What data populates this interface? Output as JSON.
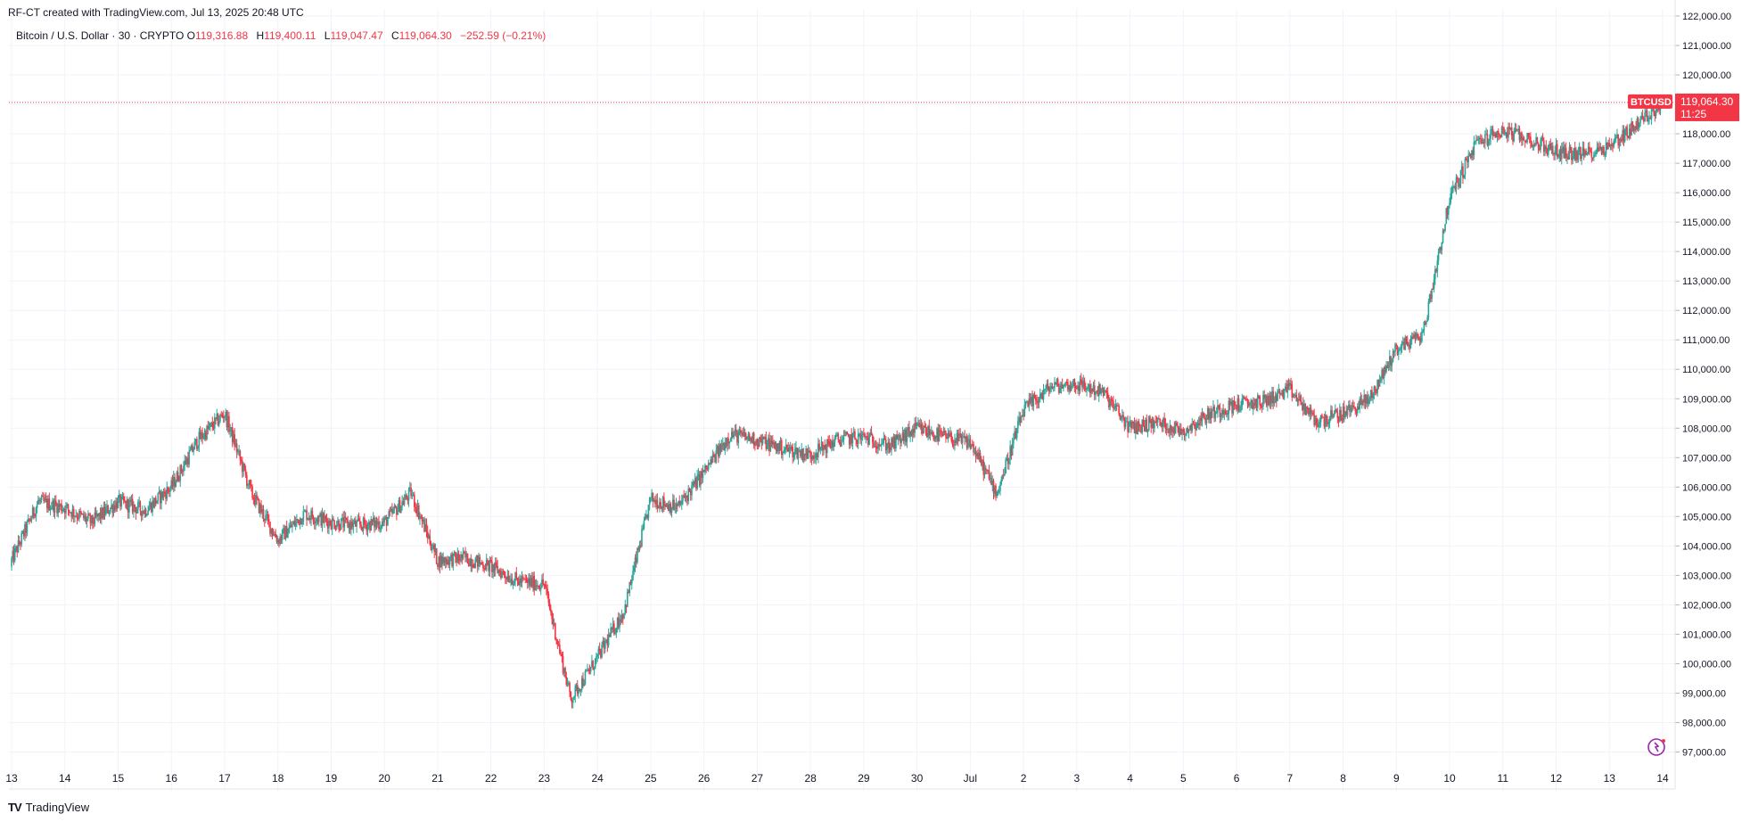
{
  "header": {
    "created_text": "RF-CT created with TradingView.com, Jul 13, 2025 20:48 UTC"
  },
  "legend": {
    "symbol": "Bitcoin / U.S. Dollar · 30 · CRYPTO",
    "open_label": "O",
    "open": "119,316.88",
    "high_label": "H",
    "high": "119,400.11",
    "low_label": "L",
    "low": "119,047.47",
    "close_label": "C",
    "close": "119,064.30",
    "change": "−252.59 (−0.21%)"
  },
  "price_tag": {
    "symbol": "BTCUSD",
    "price": "119,064.30",
    "countdown": "11:25"
  },
  "footer": {
    "brand": "TradingView"
  },
  "colors": {
    "up": "#26a69a",
    "down": "#f23645",
    "grid": "#f0f3fa",
    "axis_text": "#131722"
  },
  "chart_data": {
    "type": "line",
    "title": "Bitcoin / U.S. Dollar · 30 · CRYPTO",
    "ylim": [
      96500,
      122000
    ],
    "y_ticks": [
      97000,
      98000,
      99000,
      100000,
      101000,
      102000,
      103000,
      104000,
      105000,
      106000,
      107000,
      108000,
      109000,
      110000,
      111000,
      112000,
      113000,
      114000,
      115000,
      116000,
      117000,
      118000,
      119000,
      120000,
      121000,
      122000
    ],
    "y_tick_labels": [
      "97,000.00",
      "98,000.00",
      "99,000.00",
      "100,000.00",
      "101,000.00",
      "102,000.00",
      "103,000.00",
      "104,000.00",
      "105,000.00",
      "106,000.00",
      "107,000.00",
      "108,000.00",
      "109,000.00",
      "110,000.00",
      "111,000.00",
      "112,000.00",
      "113,000.00",
      "114,000.00",
      "115,000.00",
      "116,000.00",
      "117,000.00",
      "118,000.00",
      "119,000.00",
      "120,000.00",
      "121,000.00",
      "122,000.00"
    ],
    "x_tick_labels": [
      "13",
      "14",
      "15",
      "16",
      "17",
      "18",
      "19",
      "20",
      "21",
      "22",
      "23",
      "24",
      "25",
      "26",
      "27",
      "28",
      "29",
      "30",
      "Jul",
      "2",
      "3",
      "4",
      "5",
      "6",
      "7",
      "8",
      "9",
      "10",
      "11",
      "12",
      "13",
      "14"
    ],
    "last_price": 119064.3,
    "series": [
      {
        "name": "BTCUSD",
        "x": [
          0,
          0.5,
          1,
          1.5,
          2,
          2.5,
          3,
          3.5,
          4,
          4.5,
          5,
          5.5,
          6,
          6.5,
          7,
          7.5,
          8,
          8.5,
          9,
          9.5,
          10,
          10.5,
          11,
          11.5,
          12,
          12.5,
          13,
          13.5,
          14,
          14.5,
          15,
          15.5,
          16,
          16.5,
          17,
          17.5,
          18,
          18.5,
          19,
          19.5,
          20,
          20.5,
          21,
          21.5,
          22,
          22.5,
          23,
          23.5,
          24,
          24.5,
          25,
          25.5,
          26,
          26.5,
          27,
          27.5,
          28,
          28.5,
          29,
          29.5,
          30,
          30.5,
          31
        ],
        "values": [
          103500,
          105500,
          105300,
          104800,
          105500,
          105200,
          106000,
          107600,
          108500,
          105800,
          104200,
          105100,
          104800,
          104700,
          104800,
          105800,
          103500,
          103600,
          103300,
          102800,
          102700,
          98800,
          100200,
          101800,
          105600,
          105300,
          106500,
          107800,
          107600,
          107300,
          107100,
          107600,
          107700,
          107400,
          108000,
          107700,
          107500,
          105800,
          108600,
          109400,
          109500,
          109200,
          108000,
          108200,
          107900,
          108500,
          108800,
          108900,
          109300,
          108200,
          108500,
          109000,
          110700,
          111200,
          115800,
          117700,
          118100,
          117800,
          117400,
          117300,
          117600,
          118300,
          119064
        ]
      }
    ]
  }
}
